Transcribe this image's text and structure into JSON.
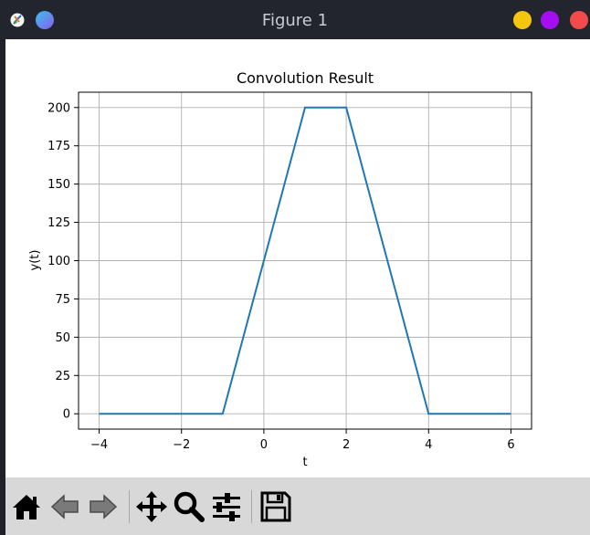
{
  "window": {
    "title": "Figure 1",
    "controls": {
      "minimize_color": "#f5c60f",
      "maximize_color": "#a40ef1",
      "close_color": "#f34b4b",
      "pin_color": "#3fa8e8"
    }
  },
  "toolbar": {
    "tools": [
      {
        "name": "home",
        "icon": "home-icon"
      },
      {
        "name": "back",
        "icon": "back-arrow-icon"
      },
      {
        "name": "forward",
        "icon": "forward-arrow-icon"
      },
      {
        "name": "pan",
        "icon": "move-icon"
      },
      {
        "name": "zoom",
        "icon": "zoom-icon"
      },
      {
        "name": "configure-subplots",
        "icon": "sliders-icon"
      },
      {
        "name": "save",
        "icon": "floppy-icon"
      }
    ]
  },
  "chart_data": {
    "type": "line",
    "title": "Convolution Result",
    "xlabel": "t",
    "ylabel": "y(t)",
    "xlim": [
      -4.5,
      6.5
    ],
    "ylim": [
      -10,
      210
    ],
    "xticks": [
      -4,
      -2,
      0,
      2,
      4,
      6
    ],
    "yticks": [
      0,
      25,
      50,
      75,
      100,
      125,
      150,
      175,
      200
    ],
    "grid": true,
    "line_color": "#1f77b4",
    "series": [
      {
        "x": [
          -4,
          -1,
          1,
          2,
          4,
          6
        ],
        "values": [
          0,
          0,
          200,
          200,
          0,
          0
        ]
      }
    ]
  }
}
